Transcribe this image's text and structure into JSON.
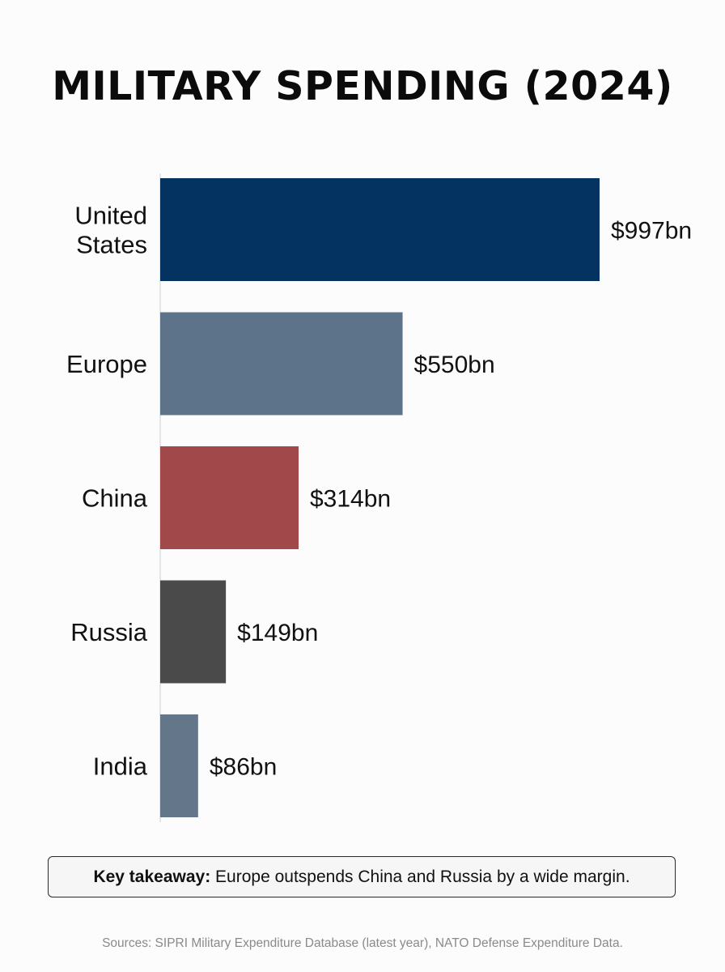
{
  "chart_data": {
    "type": "bar",
    "orientation": "horizontal",
    "title": "MILITARY SPENDING (2024)",
    "xlabel": "",
    "ylabel": "",
    "categories": [
      "United States",
      "Europe",
      "China",
      "Russia",
      "India"
    ],
    "category_lines": [
      [
        "United",
        "States"
      ],
      [
        "Europe"
      ],
      [
        "China"
      ],
      [
        "Russia"
      ],
      [
        "India"
      ]
    ],
    "values": [
      997,
      550,
      314,
      149,
      86
    ],
    "data_labels": [
      "$997bn",
      "$550bn",
      "$314bn",
      "$149bn",
      "$86bn"
    ],
    "unit": "billion USD",
    "bar_colors": [
      "#053361",
      "#5d7389",
      "#a1484a",
      "#4a4a4a",
      "#647689"
    ],
    "xlim": [
      0,
      997
    ],
    "grid": false,
    "legend": "none"
  },
  "takeaway": {
    "label": "Key takeaway:",
    "text": " Europe outspends China and Russia by a wide margin."
  },
  "sources": "Sources: SIPRI Military Expenditure Database (latest year), NATO Defense Expenditure Data."
}
